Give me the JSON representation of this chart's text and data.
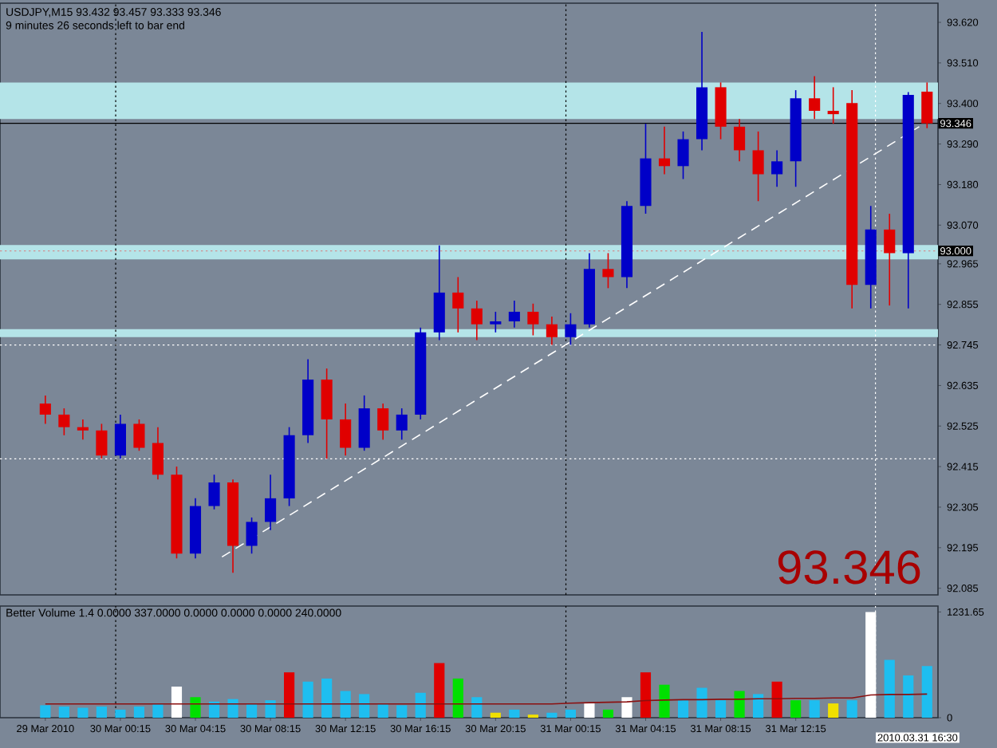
{
  "chart_data": [
    {
      "type": "candlestick",
      "title": "USDJPY,M15  93.432 93.457 93.333 93.346",
      "subtitle": "9 minutes 26 seconds left to bar end",
      "annotations": [
        "93.346"
      ],
      "x": [
        "2010-03-29T20:15",
        "2010-03-29T21:15",
        "2010-03-29T22:15",
        "2010-03-29T23:15",
        "2010-03-30T00:15",
        "2010-03-30T01:15",
        "2010-03-30T02:15",
        "2010-03-30T03:15",
        "2010-03-30T04:15",
        "2010-03-30T05:15",
        "2010-03-30T06:15",
        "2010-03-30T07:15",
        "2010-03-30T08:15",
        "2010-03-30T09:15",
        "2010-03-30T10:15",
        "2010-03-30T11:15",
        "2010-03-30T12:15",
        "2010-03-30T13:15",
        "2010-03-30T14:15",
        "2010-03-30T15:15",
        "2010-03-30T16:15",
        "2010-03-30T17:15",
        "2010-03-30T18:15",
        "2010-03-30T19:15",
        "2010-03-30T20:15",
        "2010-03-30T21:15",
        "2010-03-30T22:15",
        "2010-03-30T23:15",
        "2010-03-31T00:15",
        "2010-03-31T01:15",
        "2010-03-31T02:15",
        "2010-03-31T03:15",
        "2010-03-31T04:15",
        "2010-03-31T05:15",
        "2010-03-31T06:15",
        "2010-03-31T07:15",
        "2010-03-31T08:15",
        "2010-03-31T09:15",
        "2010-03-31T10:15",
        "2010-03-31T11:15",
        "2010-03-31T12:15",
        "2010-03-31T13:15",
        "2010-03-31T14:15",
        "2010-03-31T15:15",
        "2010-03-31T16:15",
        "2010-03-31T17:15",
        "2010-03-31T18:15",
        "2010-03-31T19:15"
      ],
      "ohlc": [
        [
          92.586,
          92.608,
          92.531,
          92.556
        ],
        [
          92.556,
          92.573,
          92.5,
          92.522
        ],
        [
          92.522,
          92.543,
          92.488,
          92.513
        ],
        [
          92.513,
          92.531,
          92.436,
          92.445
        ],
        [
          92.445,
          92.556,
          92.436,
          92.531
        ],
        [
          92.531,
          92.543,
          92.458,
          92.466
        ],
        [
          92.479,
          92.522,
          92.38,
          92.393
        ],
        [
          92.393,
          92.415,
          92.166,
          92.179
        ],
        [
          92.179,
          92.329,
          92.166,
          92.308
        ],
        [
          92.308,
          92.393,
          92.299,
          92.372
        ],
        [
          92.372,
          92.38,
          92.127,
          92.2
        ],
        [
          92.2,
          92.277,
          92.179,
          92.265
        ],
        [
          92.265,
          92.393,
          92.243,
          92.329
        ],
        [
          92.329,
          92.522,
          92.308,
          92.5
        ],
        [
          92.5,
          92.706,
          92.479,
          92.651
        ],
        [
          92.651,
          92.681,
          92.436,
          92.543
        ],
        [
          92.543,
          92.586,
          92.445,
          92.466
        ],
        [
          92.466,
          92.608,
          92.458,
          92.573
        ],
        [
          92.573,
          92.586,
          92.488,
          92.513
        ],
        [
          92.513,
          92.573,
          92.488,
          92.556
        ],
        [
          92.556,
          92.792,
          92.543,
          92.779
        ],
        [
          92.779,
          93.015,
          92.758,
          92.887
        ],
        [
          92.887,
          92.929,
          92.779,
          92.844
        ],
        [
          92.844,
          92.865,
          92.758,
          92.801
        ],
        [
          92.801,
          92.835,
          92.779,
          92.809
        ],
        [
          92.809,
          92.865,
          92.792,
          92.835
        ],
        [
          92.835,
          92.857,
          92.771,
          92.801
        ],
        [
          92.801,
          92.822,
          92.745,
          92.766
        ],
        [
          92.766,
          92.831,
          92.745,
          92.801
        ],
        [
          92.801,
          92.994,
          92.792,
          92.951
        ],
        [
          92.951,
          92.994,
          92.899,
          92.929
        ],
        [
          92.929,
          93.135,
          92.899,
          93.122
        ],
        [
          93.122,
          93.345,
          93.101,
          93.251
        ],
        [
          93.251,
          93.337,
          93.208,
          93.23
        ],
        [
          93.23,
          93.324,
          93.195,
          93.303
        ],
        [
          93.303,
          93.594,
          93.273,
          93.444
        ],
        [
          93.444,
          93.457,
          93.303,
          93.337
        ],
        [
          93.337,
          93.358,
          93.243,
          93.273
        ],
        [
          93.273,
          93.324,
          93.135,
          93.208
        ],
        [
          93.208,
          93.273,
          93.174,
          93.243
        ],
        [
          93.243,
          93.436,
          93.174,
          93.414
        ],
        [
          93.414,
          93.474,
          93.358,
          93.38
        ],
        [
          93.38,
          93.444,
          93.345,
          93.371
        ],
        [
          93.401,
          93.436,
          92.844,
          92.908
        ],
        [
          92.908,
          93.122,
          92.844,
          93.058
        ],
        [
          93.058,
          93.101,
          92.852,
          92.994
        ],
        [
          92.994,
          93.431,
          92.844,
          93.423
        ],
        [
          93.432,
          93.457,
          93.333,
          93.346
        ]
      ],
      "colors": [
        "#e00000",
        "#e00000",
        "#e00000",
        "#e00000",
        "#0000c8",
        "#e00000",
        "#e00000",
        "#e00000",
        "#0000c8",
        "#0000c8",
        "#e00000",
        "#0000c8",
        "#0000c8",
        "#0000c8",
        "#0000c8",
        "#e00000",
        "#e00000",
        "#0000c8",
        "#e00000",
        "#0000c8",
        "#0000c8",
        "#0000c8",
        "#e00000",
        "#e00000",
        "#0000c8",
        "#0000c8",
        "#e00000",
        "#e00000",
        "#0000c8",
        "#0000c8",
        "#e00000",
        "#0000c8",
        "#0000c8",
        "#e00000",
        "#0000c8",
        "#0000c8",
        "#e00000",
        "#e00000",
        "#e00000",
        "#0000c8",
        "#0000c8",
        "#e00000",
        "#e00000",
        "#e00000",
        "#0000c8",
        "#e00000",
        "#0000c8",
        "#e00000"
      ],
      "series": [
        {
          "type": "line",
          "color": "#ffffff",
          "line_style": "dashed",
          "x": [
            "2010-03-30T05:40",
            "2010-03-31T18:50"
          ],
          "values": [
            92.17,
            93.337
          ]
        }
      ],
      "bands": [
        {
          "axis": "y",
          "from": 93.358,
          "to": 93.457,
          "color": "#b4e4e8"
        },
        {
          "axis": "y",
          "from": 92.977,
          "to": 93.016,
          "color": "#b4e4e8"
        },
        {
          "axis": "y",
          "from": 92.766,
          "to": 92.788,
          "color": "#b4e4e8"
        }
      ],
      "ref_lines": [
        {
          "axis": "y",
          "value": 93.346,
          "label": "93.346",
          "color": "#000000",
          "line_style": "solid"
        },
        {
          "axis": "y",
          "value": 93.0,
          "label": "93.000",
          "color": "#d09090",
          "line_style": "dotted"
        },
        {
          "axis": "y",
          "value": 92.436,
          "color": "#ffffff",
          "line_style": "dotted"
        },
        {
          "axis": "y",
          "value": 92.745,
          "color": "#ffffff",
          "line_style": "dotted"
        },
        {
          "axis": "x",
          "value": "2010-03-30T00:00",
          "color": "#000000",
          "line_style": "dotted"
        },
        {
          "axis": "x",
          "value": "2010-03-31T00:00",
          "color": "#000000",
          "line_style": "dotted"
        },
        {
          "axis": "x",
          "value": "2010-03-31T16:30",
          "color": "#ffffff",
          "line_style": "dotted"
        }
      ],
      "xlim": [
        "2010-03-29T17:50",
        "2010-03-31T19:50"
      ],
      "ylim": [
        92.067,
        93.672
      ],
      "yticks": [
        92.085,
        92.195,
        92.305,
        92.415,
        92.525,
        92.635,
        92.745,
        92.855,
        92.965,
        {
          "value": 93.07,
          "label": "93.070"
        },
        {
          "value": 93.18,
          "label": "93.180"
        },
        {
          "value": 93.29,
          "label": "93.290"
        },
        {
          "value": 93.4,
          "label": "93.400"
        },
        {
          "value": 93.51,
          "label": "93.510"
        },
        {
          "value": 93.62,
          "label": "93.620"
        }
      ],
      "tick_labels": "y"
    },
    {
      "type": "bar",
      "title": "Better Volume 1.4 0.0000 337.0000 0.0000 0.0000 0.0000 240.0000",
      "x": [
        "2010-03-29T20:15",
        "2010-03-29T21:15",
        "2010-03-29T22:15",
        "2010-03-29T23:15",
        "2010-03-30T00:15",
        "2010-03-30T01:15",
        "2010-03-30T02:15",
        "2010-03-30T03:15",
        "2010-03-30T04:15",
        "2010-03-30T05:15",
        "2010-03-30T06:15",
        "2010-03-30T07:15",
        "2010-03-30T08:15",
        "2010-03-30T09:15",
        "2010-03-30T10:15",
        "2010-03-30T11:15",
        "2010-03-30T12:15",
        "2010-03-30T13:15",
        "2010-03-30T14:15",
        "2010-03-30T15:15",
        "2010-03-30T16:15",
        "2010-03-30T17:15",
        "2010-03-30T18:15",
        "2010-03-30T19:15",
        "2010-03-30T20:15",
        "2010-03-30T21:15",
        "2010-03-30T22:15",
        "2010-03-30T23:15",
        "2010-03-31T00:15",
        "2010-03-31T01:15",
        "2010-03-31T02:15",
        "2010-03-31T03:15",
        "2010-03-31T04:15",
        "2010-03-31T05:15",
        "2010-03-31T06:15",
        "2010-03-31T07:15",
        "2010-03-31T08:15",
        "2010-03-31T09:15",
        "2010-03-31T10:15",
        "2010-03-31T11:15",
        "2010-03-31T12:15",
        "2010-03-31T13:15",
        "2010-03-31T14:15",
        "2010-03-31T15:15",
        "2010-03-31T16:15",
        "2010-03-31T17:15",
        "2010-03-31T18:15",
        "2010-03-31T19:15"
      ],
      "series": [
        {
          "type": "bar",
          "values": [
            145,
            130,
            116,
            130,
            94,
            130,
            166,
            362,
            239,
            188,
            217,
            166,
            203,
            528,
            420,
            456,
            311,
            275,
            166,
            145,
            290,
            637,
            456,
            239,
            58,
            94,
            36,
            58,
            94,
            166,
            94,
            239,
            528,
            384,
            203,
            348,
            203,
            311,
            275,
            420,
            203,
            203,
            166,
            203,
            1230,
            673,
            492,
            601
          ],
          "colors": [
            "#1ebef0",
            "#1ebef0",
            "#1ebef0",
            "#1ebef0",
            "#1ebef0",
            "#1ebef0",
            "#1ebef0",
            "#ffffff",
            "#00e000",
            "#1ebef0",
            "#1ebef0",
            "#1ebef0",
            "#1ebef0",
            "#e00000",
            "#1ebef0",
            "#1ebef0",
            "#1ebef0",
            "#1ebef0",
            "#1ebef0",
            "#1ebef0",
            "#1ebef0",
            "#e00000",
            "#00e000",
            "#1ebef0",
            "#f0e000",
            "#1ebef0",
            "#f0e000",
            "#1ebef0",
            "#1ebef0",
            "#ffffff",
            "#00e000",
            "#ffffff",
            "#e00000",
            "#00e000",
            "#1ebef0",
            "#1ebef0",
            "#1ebef0",
            "#00e000",
            "#1ebef0",
            "#e00000",
            "#00e000",
            "#1ebef0",
            "#f0e000",
            "#1ebef0",
            "#ffffff",
            "#1ebef0",
            "#1ebef0",
            "#1ebef0"
          ]
        },
        {
          "type": "line",
          "color": "#8b1010",
          "values": [
            160,
            160,
            160,
            160,
            160,
            160,
            160,
            160,
            160,
            160,
            160,
            160,
            160,
            160,
            160,
            160,
            160,
            160,
            160,
            160,
            160,
            160,
            160,
            160,
            160,
            160,
            160,
            160,
            170,
            175,
            180,
            185,
            200,
            205,
            210,
            210,
            215,
            215,
            220,
            220,
            225,
            225,
            230,
            230,
            265,
            270,
            270,
            275
          ]
        }
      ],
      "ref_lines": [
        {
          "axis": "x",
          "value": "2010-03-30T00:00",
          "color": "#000000",
          "line_style": "dotted"
        },
        {
          "axis": "x",
          "value": "2010-03-31T00:00",
          "color": "#000000",
          "line_style": "dotted"
        },
        {
          "axis": "x",
          "value": "2010-03-31T16:30",
          "label": "2010.03.31 16:30",
          "color": "#ffffff",
          "line_style": "dotted"
        }
      ],
      "xlim": [
        "2010-03-29T17:50",
        "2010-03-31T19:50"
      ],
      "xticks": [
        {
          "value": "2010-03-29T20:15",
          "label": "29 Mar 2010"
        },
        {
          "value": "2010-03-30T00:15",
          "label": "30 Mar 00:15"
        },
        {
          "value": "2010-03-30T04:15",
          "label": "30 Mar 04:15"
        },
        {
          "value": "2010-03-30T08:15",
          "label": "30 Mar 08:15"
        },
        {
          "value": "2010-03-30T12:15",
          "label": "30 Mar 12:15"
        },
        {
          "value": "2010-03-30T16:15",
          "label": "30 Mar 16:15"
        },
        {
          "value": "2010-03-30T20:15",
          "label": "30 Mar 20:15"
        },
        {
          "value": "2010-03-31T00:15",
          "label": "31 Mar 00:15"
        },
        {
          "value": "2010-03-31T04:15",
          "label": "31 Mar 04:15"
        },
        {
          "value": "2010-03-31T08:15",
          "label": "31 Mar 08:15"
        },
        {
          "value": "2010-03-31T12:15",
          "label": "31 Mar 12:15"
        }
      ],
      "ylim": [
        0,
        1300
      ],
      "yticks": [
        0,
        1231.65
      ]
    }
  ]
}
